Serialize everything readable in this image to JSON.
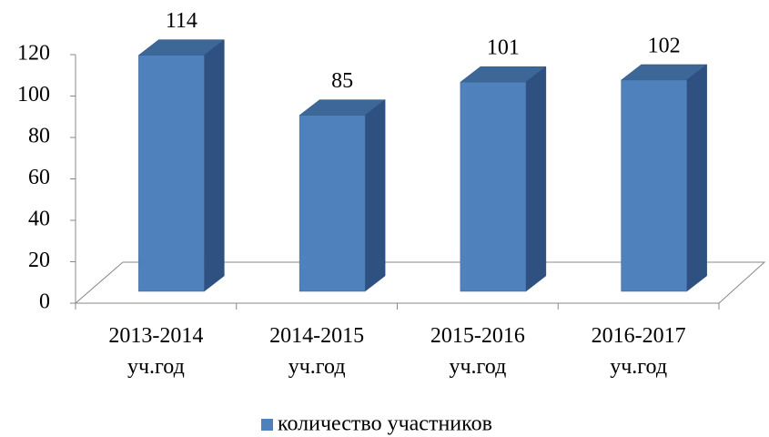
{
  "chart_data": {
    "type": "bar3d",
    "categories": [
      "2013-2014 уч.год",
      "2014-2015 уч.год",
      "2015-2016 уч.год",
      "2016-2017 уч.год"
    ],
    "series": [
      {
        "name": "количество участников",
        "color": "#4f81bd",
        "values": [
          114,
          85,
          101,
          102
        ]
      }
    ],
    "ylim": [
      0,
      120
    ],
    "yticks": [
      0,
      20,
      40,
      60,
      80,
      100,
      120
    ],
    "legend": "bottom"
  }
}
